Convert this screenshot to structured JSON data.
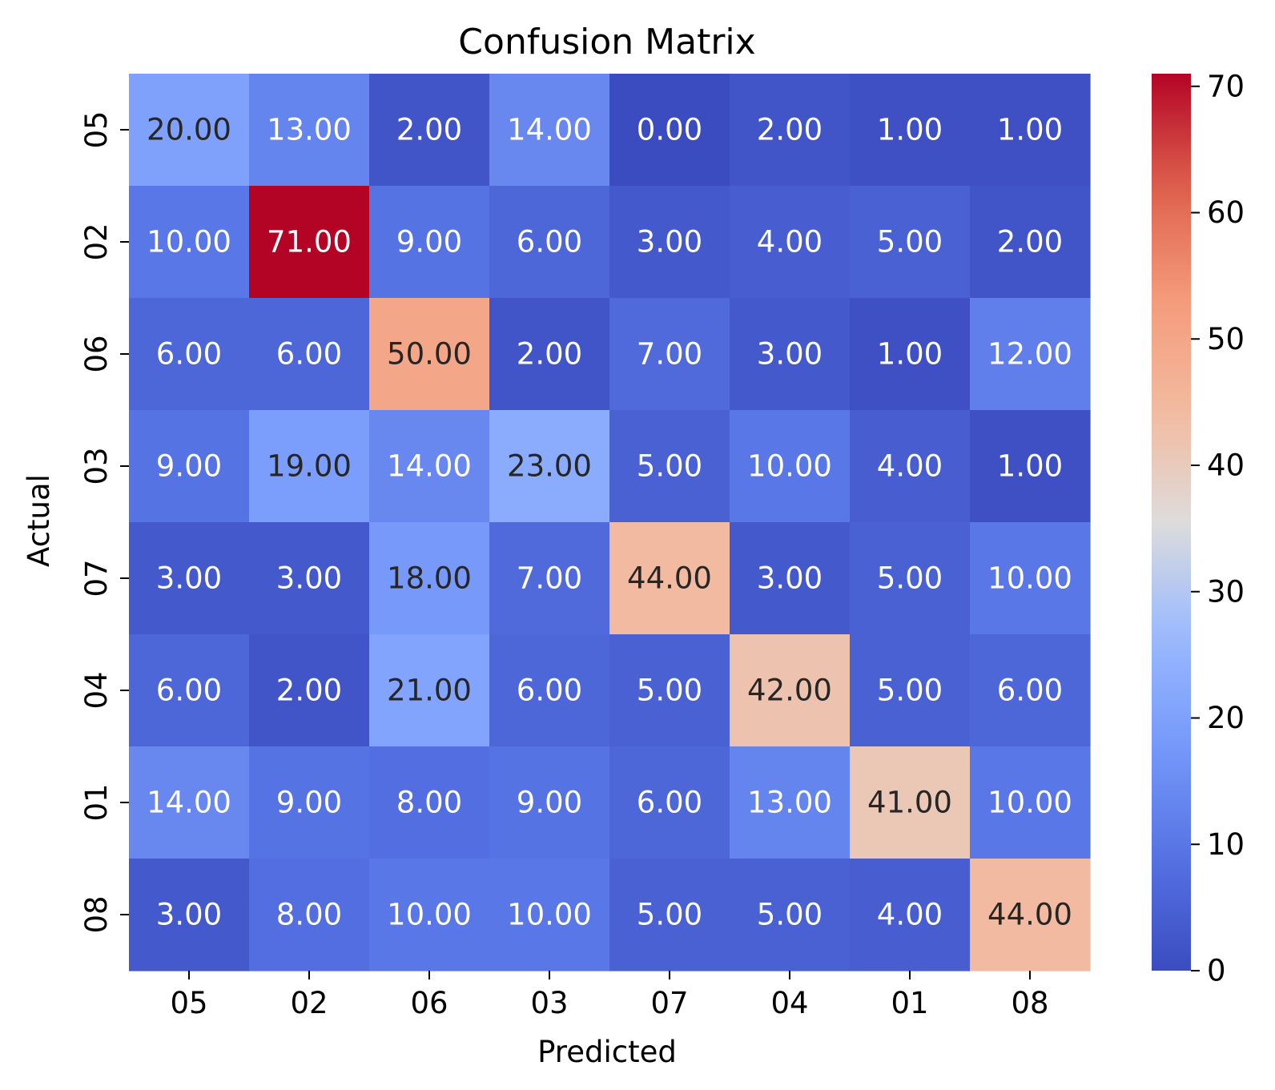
{
  "chart_data": {
    "type": "heatmap",
    "title": "Confusion Matrix",
    "xlabel": "Predicted",
    "ylabel": "Actual",
    "x_categories": [
      "05",
      "02",
      "06",
      "03",
      "07",
      "04",
      "01",
      "08"
    ],
    "y_categories": [
      "05",
      "02",
      "06",
      "03",
      "07",
      "04",
      "01",
      "08"
    ],
    "values": [
      [
        20,
        13,
        2,
        14,
        0,
        2,
        1,
        1
      ],
      [
        10,
        71,
        9,
        6,
        3,
        4,
        5,
        2
      ],
      [
        6,
        6,
        50,
        2,
        7,
        3,
        1,
        12
      ],
      [
        9,
        19,
        14,
        23,
        5,
        10,
        4,
        1
      ],
      [
        3,
        3,
        18,
        7,
        44,
        3,
        5,
        10
      ],
      [
        6,
        2,
        21,
        6,
        5,
        42,
        5,
        6
      ],
      [
        14,
        9,
        8,
        9,
        6,
        13,
        41,
        10
      ],
      [
        3,
        8,
        10,
        10,
        5,
        5,
        4,
        44
      ]
    ],
    "value_format": "fixed-2",
    "colormap": "coolwarm",
    "vmin": 0,
    "vmax": 71,
    "colorbar_ticks": [
      0,
      10,
      20,
      30,
      40,
      50,
      60,
      70
    ],
    "grid": false,
    "colorbar_placement": "right"
  }
}
